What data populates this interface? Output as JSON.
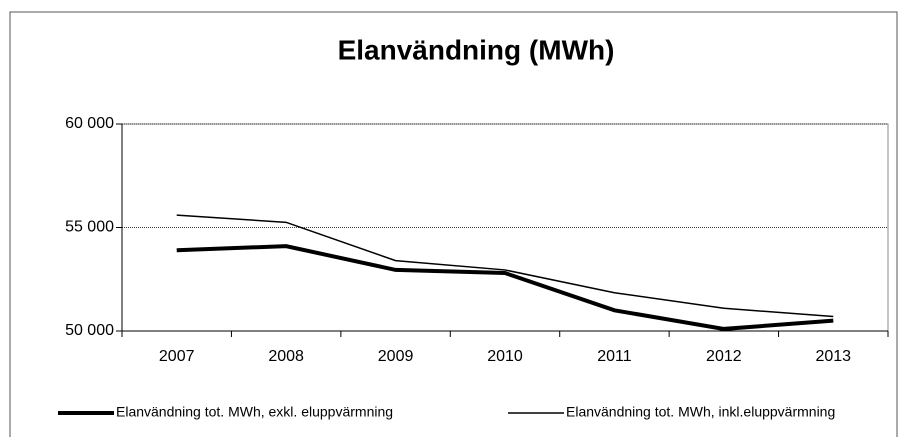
{
  "chart_data": {
    "type": "line",
    "title": "Elanvändning (MWh)",
    "categories": [
      "2007",
      "2008",
      "2009",
      "2010",
      "2011",
      "2012",
      "2013"
    ],
    "series": [
      {
        "name": "Elanvändning tot. MWh, exkl. eluppvärmning",
        "color": "#000000",
        "values": [
          53900,
          54100,
          52950,
          52800,
          51000,
          50100,
          50500
        ]
      },
      {
        "name": "Elanvändning tot. MWh, inkl.eluppvärmning",
        "color": "#000000",
        "values": [
          55600,
          55250,
          53400,
          52950,
          51850,
          51100,
          50700
        ]
      }
    ],
    "ylim": [
      50000,
      60000
    ],
    "yticks": [
      {
        "value": 50000,
        "label": "50 000"
      },
      {
        "value": 55000,
        "label": "55 000"
      },
      {
        "value": 60000,
        "label": "60 000"
      }
    ],
    "grid": true,
    "legend": "bottom"
  }
}
